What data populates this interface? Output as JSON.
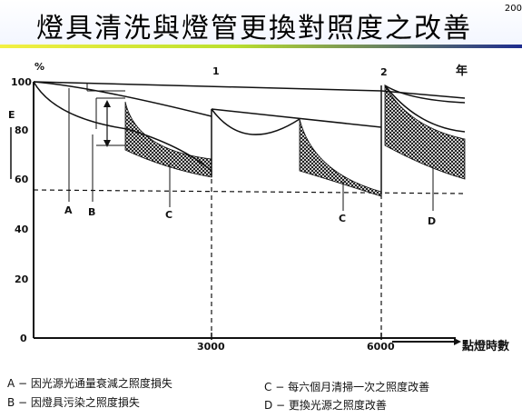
{
  "header": {
    "title": "燈具清洗與燈管更換對照度之改善",
    "corner_text": "200"
  },
  "chart_data": {
    "type": "line",
    "title": "",
    "y_axis": {
      "unit_label": "%",
      "side_label": "E",
      "ticks": [
        "0",
        "20",
        "40",
        "60",
        "80",
        "100"
      ]
    },
    "x_axis": {
      "label": "點燈時數",
      "ticks": [
        "3000",
        "6000"
      ]
    },
    "top_markers": [
      "1",
      "2"
    ],
    "top_unit": "年",
    "annotations": [
      "A",
      "B",
      "C",
      "C",
      "D"
    ],
    "legend": [
      {
        "key": "A",
        "text": "A − 因光源光通量衰減之照度損失"
      },
      {
        "key": "B",
        "text": "B − 因燈具污染之照度損失"
      },
      {
        "key": "C",
        "text": "C − 每六個月清掃一次之照度改善"
      },
      {
        "key": "D",
        "text": "D − 更換光源之照度改善"
      }
    ],
    "grid": false
  }
}
